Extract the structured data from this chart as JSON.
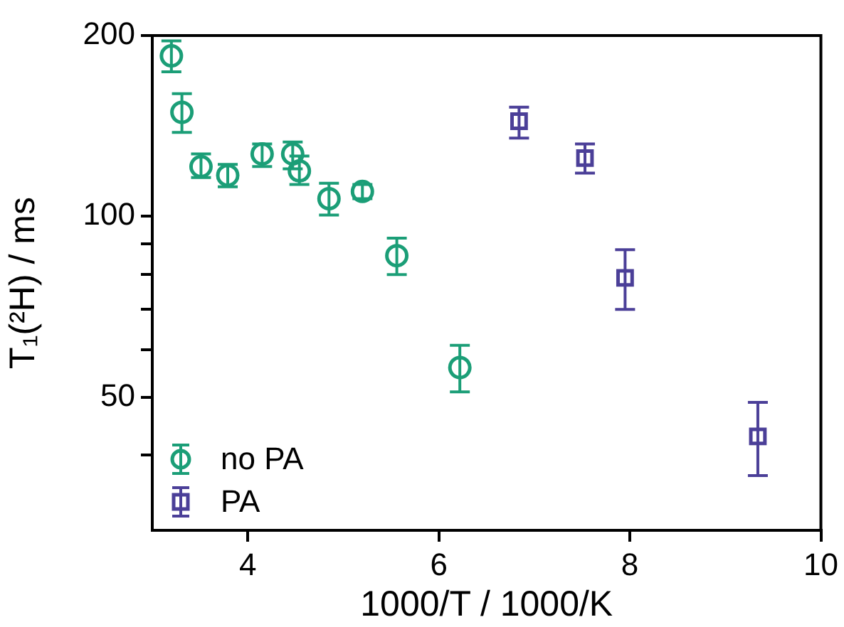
{
  "chart_data": {
    "type": "scatter",
    "xlabel": "1000/T / 1000/K",
    "ylabel": "T₁(²H) / ms",
    "log": "y",
    "grid": false,
    "legend": "bottom left",
    "xlim": [
      3,
      10
    ],
    "xticks": [
      4,
      6,
      8,
      10
    ],
    "ylim": [
      30,
      200
    ],
    "yticks": [
      {
        "value": 40,
        "label": null
      },
      50,
      {
        "value": 60,
        "label": null
      },
      {
        "value": 70,
        "label": null
      },
      {
        "value": 80,
        "label": null
      },
      {
        "value": 90,
        "label": null
      },
      100,
      200
    ],
    "series": [
      {
        "name": "no PA",
        "color": "#1b9e77",
        "marker": "circle",
        "x": [
          3.2,
          3.31,
          3.51,
          3.79,
          4.15,
          4.47,
          4.54,
          4.85,
          5.2,
          5.56,
          6.22
        ],
        "values": [
          185,
          149,
          121,
          117,
          127,
          127,
          119,
          107,
          110,
          86,
          56
        ],
        "errors": [
          [
            174,
            196
          ],
          [
            138,
            160
          ],
          [
            116,
            127
          ],
          [
            112,
            122
          ],
          [
            121,
            132
          ],
          [
            120,
            133
          ],
          [
            113,
            126
          ],
          [
            100.5,
            113.5
          ],
          [
            107,
            113
          ],
          [
            80,
            92
          ],
          [
            51,
            61
          ]
        ]
      },
      {
        "name": "PA",
        "color": "#4b3f98",
        "marker": "square",
        "x": [
          6.84,
          7.53,
          7.95,
          9.34
        ],
        "values": [
          144,
          125,
          79,
          43
        ],
        "errors": [
          [
            135,
            152
          ],
          [
            118,
            132
          ],
          [
            70,
            88
          ],
          [
            37,
            49
          ]
        ]
      }
    ]
  }
}
